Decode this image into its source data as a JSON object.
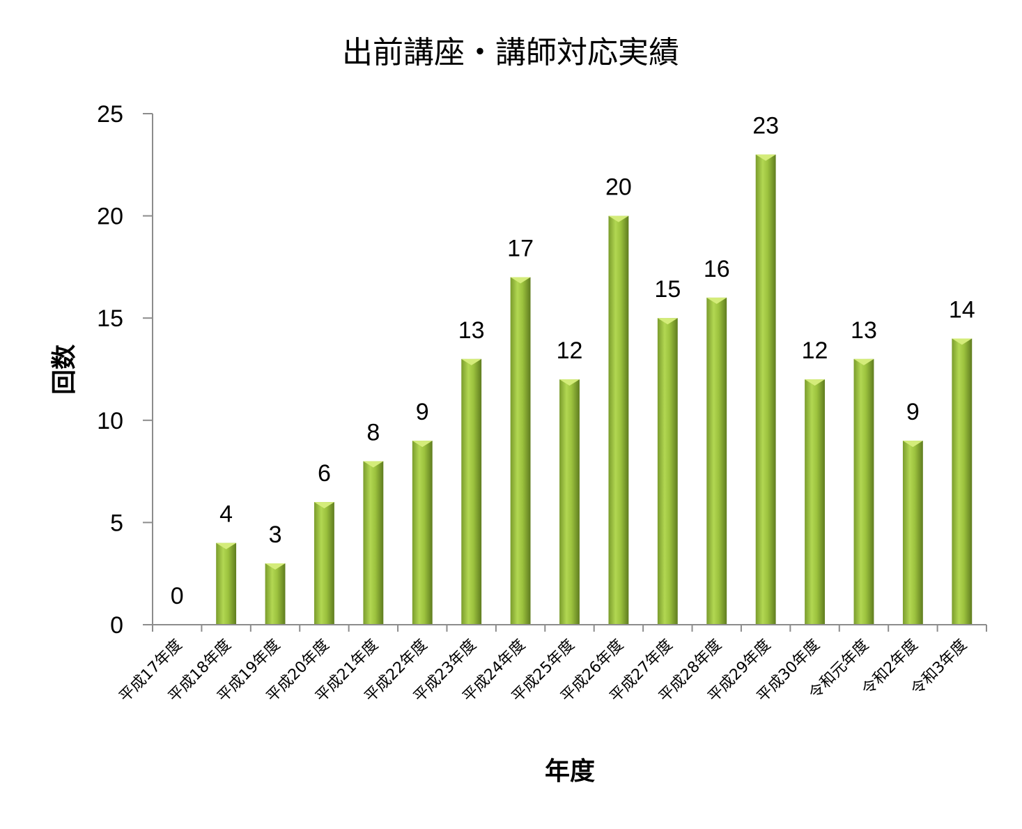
{
  "chart_data": {
    "type": "bar",
    "title": "出前講座・講師対応実績",
    "xlabel": "年度",
    "ylabel": "回数",
    "ylim": [
      0,
      25
    ],
    "yticks": [
      0,
      5,
      10,
      15,
      20,
      25
    ],
    "grid": false,
    "legend": "none",
    "categories": [
      "平成17年度",
      "平成18年度",
      "平成19年度",
      "平成20年度",
      "平成21年度",
      "平成22年度",
      "平成23年度",
      "平成24年度",
      "平成25年度",
      "平成26年度",
      "平成27年度",
      "平成28年度",
      "平成29年度",
      "平成30年度",
      "令和元年度",
      "令和2年度",
      "令和3年度"
    ],
    "values": [
      0,
      4,
      3,
      6,
      8,
      9,
      13,
      17,
      12,
      20,
      15,
      16,
      23,
      12,
      13,
      9,
      14
    ],
    "colors": {
      "bar_light": "#b9dc5a",
      "bar_mid": "#9dc33f",
      "bar_dark": "#6b8a25",
      "cap": "#d4ec7a",
      "axis": "#8c8c8c"
    }
  }
}
